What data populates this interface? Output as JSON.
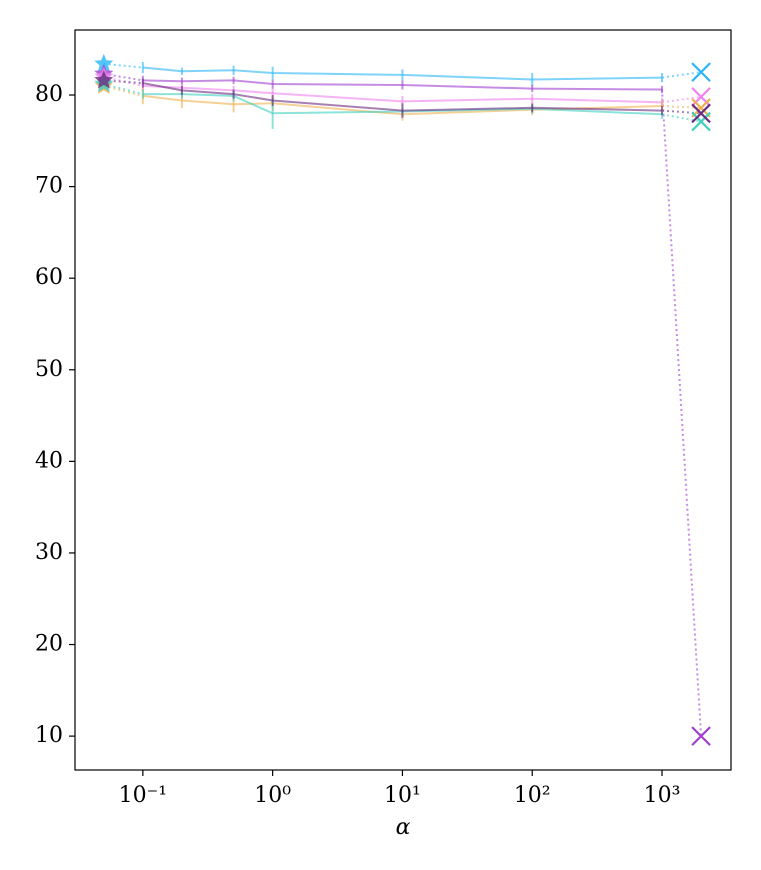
{
  "chart_data": {
    "type": "line",
    "xlabel": "α",
    "xscale": "log",
    "xlim": [
      0.03,
      3400
    ],
    "ylim": [
      6.3,
      87.1
    ],
    "xticks": [
      {
        "value": 0.1,
        "label": "10⁻¹"
      },
      {
        "value": 1,
        "label": "10⁰"
      },
      {
        "value": 10,
        "label": "10¹"
      },
      {
        "value": 100,
        "label": "10²"
      },
      {
        "value": 1000,
        "label": "10³"
      }
    ],
    "yticks": [
      10,
      20,
      30,
      40,
      50,
      60,
      70,
      80
    ],
    "x": [
      0.1,
      0.2,
      0.5,
      1,
      10,
      100,
      1000
    ],
    "start_x": 0.05,
    "end_x": 2000,
    "series": [
      {
        "color": "#29b6f6",
        "start_value": 83.4,
        "values": [
          83.0,
          82.6,
          82.7,
          82.4,
          82.2,
          81.7,
          81.9
        ],
        "errors": [
          0.6,
          0.4,
          0.5,
          0.7,
          0.6,
          0.7,
          0.5
        ],
        "end_value": 82.5
      },
      {
        "color": "#a040d0",
        "start_value": 82.3,
        "values": [
          81.6,
          81.5,
          81.6,
          81.2,
          81.1,
          80.7,
          80.6
        ],
        "errors": [
          0.5,
          0.4,
          0.4,
          0.5,
          0.5,
          0.4,
          0.4
        ],
        "end_value": 10
      },
      {
        "color": "#ee82ee",
        "start_value": 82.0,
        "values": [
          81.0,
          80.8,
          80.5,
          80.2,
          79.3,
          79.6,
          79.2
        ],
        "errors": [
          0.5,
          0.5,
          0.5,
          0.6,
          0.6,
          0.5,
          0.5
        ],
        "end_value": 79.8
      },
      {
        "color": "#f0b050",
        "start_value": 81.0,
        "values": [
          79.9,
          79.4,
          79.0,
          79.1,
          77.9,
          78.4,
          78.8
        ],
        "errors": [
          0.9,
          0.8,
          0.9,
          0.8,
          0.7,
          0.6,
          0.6
        ],
        "end_value": 78.6
      },
      {
        "color": "#40d0c0",
        "start_value": 81.2,
        "values": [
          80.1,
          80.1,
          79.9,
          78.0,
          78.2,
          78.5,
          77.9
        ],
        "errors": [
          0.5,
          0.5,
          0.6,
          1.7,
          0.5,
          0.5,
          0.5
        ],
        "end_value": 77.1
      },
      {
        "color": "#6a2c80",
        "start_value": 81.6,
        "values": [
          81.3,
          80.5,
          80.1,
          79.4,
          78.3,
          78.6,
          78.3
        ],
        "errors": [
          0.5,
          0.5,
          0.5,
          0.6,
          0.8,
          0.5,
          0.5
        ],
        "end_value": 78.0
      }
    ]
  }
}
